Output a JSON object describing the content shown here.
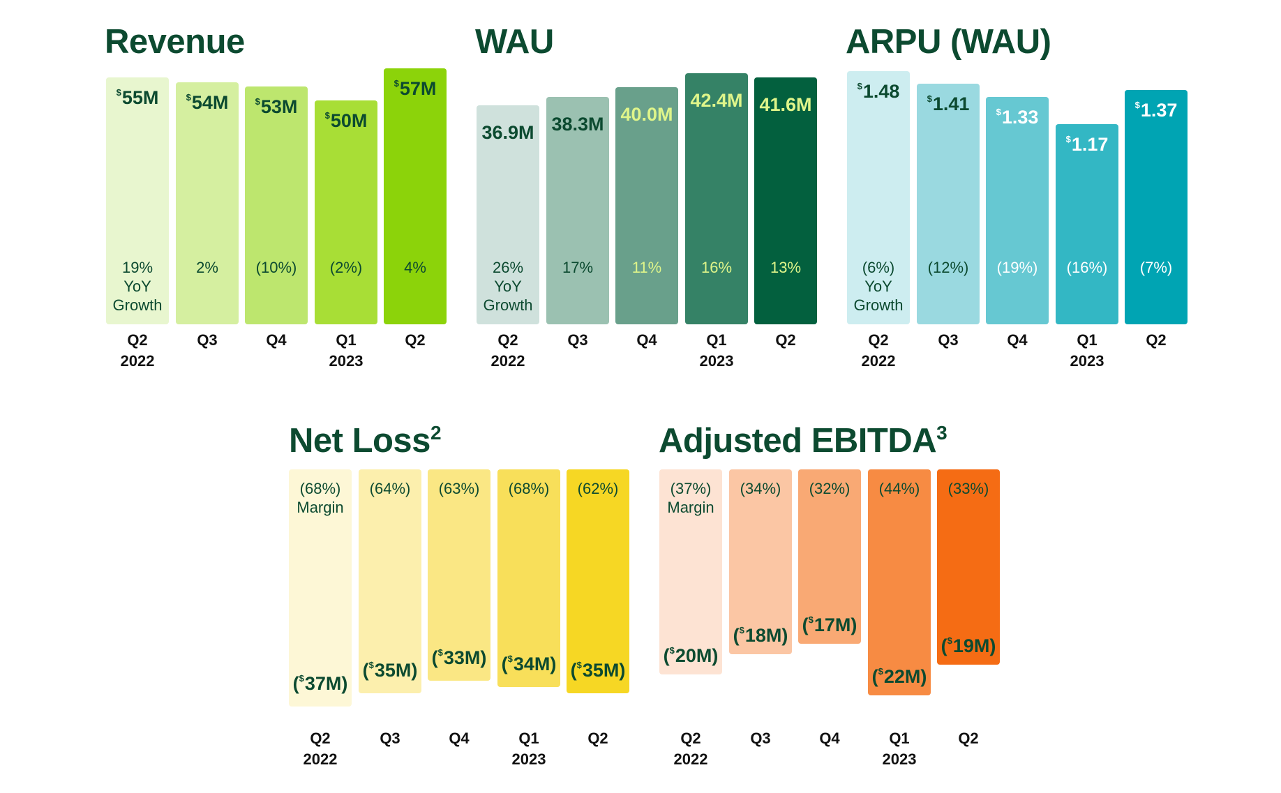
{
  "chart_data": [
    {
      "id": "revenue",
      "type": "bar",
      "title": "Revenue",
      "title_sup": "",
      "categories": [
        [
          "Q2",
          "2022"
        ],
        [
          "Q3",
          ""
        ],
        [
          "Q4",
          ""
        ],
        [
          "Q1",
          "2023"
        ],
        [
          "Q2",
          ""
        ]
      ],
      "values": [
        55,
        54,
        53,
        50,
        57
      ],
      "value_labels": [
        {
          "prefix": "$",
          "text": "55M"
        },
        {
          "prefix": "$",
          "text": "54M"
        },
        {
          "prefix": "$",
          "text": "53M"
        },
        {
          "prefix": "$",
          "text": "50M"
        },
        {
          "prefix": "$",
          "text": "57M"
        }
      ],
      "secondary_labels": [
        [
          "19%",
          "YoY",
          "Growth"
        ],
        [
          "2%"
        ],
        [
          "(10%)"
        ],
        [
          "(2%)"
        ],
        [
          "4%"
        ]
      ],
      "colors": [
        "#e8f6cf",
        "#d5efa0",
        "#bde66e",
        "#a8de36",
        "#8cd30a"
      ],
      "value_text_colors": [
        "#0c4a30",
        "#0c4a30",
        "#0c4a30",
        "#0c4a30",
        "#0c4a30"
      ],
      "secondary_text_colors": [
        "#0c4a30",
        "#0c4a30",
        "#0c4a30",
        "#0c4a30",
        "#0c4a30"
      ]
    },
    {
      "id": "wau",
      "type": "bar",
      "title": "WAU",
      "title_sup": "",
      "categories": [
        [
          "Q2",
          "2022"
        ],
        [
          "Q3",
          ""
        ],
        [
          "Q4",
          ""
        ],
        [
          "Q1",
          "2023"
        ],
        [
          "Q2",
          ""
        ]
      ],
      "values": [
        36.9,
        38.3,
        40.0,
        42.4,
        41.6
      ],
      "value_labels": [
        {
          "prefix": "",
          "text": "36.9M"
        },
        {
          "prefix": "",
          "text": "38.3M"
        },
        {
          "prefix": "",
          "text": "40.0M"
        },
        {
          "prefix": "",
          "text": "42.4M"
        },
        {
          "prefix": "",
          "text": "41.6M"
        }
      ],
      "secondary_labels": [
        [
          "26%",
          "YoY",
          "Growth"
        ],
        [
          "17%"
        ],
        [
          "11%"
        ],
        [
          "16%"
        ],
        [
          "13%"
        ]
      ],
      "colors": [
        "#cfe1dc",
        "#9bc1b1",
        "#69a08b",
        "#358266",
        "#03603e"
      ],
      "value_text_colors": [
        "#0c4a30",
        "#0c4a30",
        "#dff58a",
        "#dff58a",
        "#dff58a"
      ],
      "secondary_text_colors": [
        "#0c4a30",
        "#0c4a30",
        "#dff58a",
        "#dff58a",
        "#dff58a"
      ]
    },
    {
      "id": "arpu",
      "type": "bar",
      "title": "ARPU (WAU)",
      "title_sup": "",
      "categories": [
        [
          "Q2",
          "2022"
        ],
        [
          "Q3",
          ""
        ],
        [
          "Q4",
          ""
        ],
        [
          "Q1",
          "2023"
        ],
        [
          "Q2",
          ""
        ]
      ],
      "values": [
        1.48,
        1.41,
        1.33,
        1.17,
        1.37
      ],
      "value_labels": [
        {
          "prefix": "$",
          "text": "1.48"
        },
        {
          "prefix": "$",
          "text": "1.41"
        },
        {
          "prefix": "$",
          "text": "1.33"
        },
        {
          "prefix": "$",
          "text": "1.17"
        },
        {
          "prefix": "$",
          "text": "1.37"
        }
      ],
      "secondary_labels": [
        [
          "(6%)",
          "YoY",
          "Growth"
        ],
        [
          "(12%)"
        ],
        [
          "(19%)"
        ],
        [
          "(16%)"
        ],
        [
          "(7%)"
        ]
      ],
      "colors": [
        "#cdedf0",
        "#9ad9e0",
        "#66c8d2",
        "#33b7c4",
        "#00a4b3"
      ],
      "value_text_colors": [
        "#0c4a30",
        "#0c4a30",
        "#ffffff",
        "#ffffff",
        "#ffffff"
      ],
      "secondary_text_colors": [
        "#0c4a30",
        "#0c4a30",
        "#ffffff",
        "#ffffff",
        "#ffffff"
      ]
    },
    {
      "id": "net_loss",
      "type": "bar",
      "title": "Net Loss",
      "title_sup": "2",
      "categories": [
        [
          "Q2",
          "2022"
        ],
        [
          "Q3",
          ""
        ],
        [
          "Q4",
          ""
        ],
        [
          "Q1",
          "2023"
        ],
        [
          "Q2",
          ""
        ]
      ],
      "values": [
        -37,
        -35,
        -33,
        -34,
        -35
      ],
      "value_labels": [
        {
          "prefix": "$",
          "text": "37M",
          "paren": true
        },
        {
          "prefix": "$",
          "text": "35M",
          "paren": true
        },
        {
          "prefix": "$",
          "text": "33M",
          "paren": true
        },
        {
          "prefix": "$",
          "text": "34M",
          "paren": true
        },
        {
          "prefix": "$",
          "text": "35M",
          "paren": true
        }
      ],
      "secondary_labels": [
        [
          "(68%)",
          "Margin"
        ],
        [
          "(64%)"
        ],
        [
          "(63%)"
        ],
        [
          "(68%)"
        ],
        [
          "(62%)"
        ]
      ],
      "colors": [
        "#fdf7d6",
        "#fcefad",
        "#fae784",
        "#f8df5a",
        "#f6d724"
      ],
      "value_text_colors": [
        "#0c4a30",
        "#0c4a30",
        "#0c4a30",
        "#0c4a30",
        "#0c4a30"
      ],
      "secondary_text_colors": [
        "#0c4a30",
        "#0c4a30",
        "#0c4a30",
        "#0c4a30",
        "#0c4a30"
      ]
    },
    {
      "id": "adj_ebitda",
      "type": "bar",
      "title": "Adjusted EBITDA",
      "title_sup": "3",
      "categories": [
        [
          "Q2",
          "2022"
        ],
        [
          "Q3",
          ""
        ],
        [
          "Q4",
          ""
        ],
        [
          "Q1",
          "2023"
        ],
        [
          "Q2",
          ""
        ]
      ],
      "values": [
        -20,
        -18,
        -17,
        -22,
        -19
      ],
      "value_labels": [
        {
          "prefix": "$",
          "text": "20M",
          "paren": true
        },
        {
          "prefix": "$",
          "text": "18M",
          "paren": true
        },
        {
          "prefix": "$",
          "text": "17M",
          "paren": true
        },
        {
          "prefix": "$",
          "text": "22M",
          "paren": true
        },
        {
          "prefix": "$",
          "text": "19M",
          "paren": true
        }
      ],
      "secondary_labels": [
        [
          "(37%)",
          "Margin"
        ],
        [
          "(34%)"
        ],
        [
          "(32%)"
        ],
        [
          "(44%)"
        ],
        [
          "(33%)"
        ]
      ],
      "colors": [
        "#fde3d3",
        "#fbc6a4",
        "#f9a974",
        "#f78b43",
        "#f56c14"
      ],
      "value_text_colors": [
        "#0c4a30",
        "#0c4a30",
        "#0c4a30",
        "#0c4a30",
        "#0c4a30"
      ],
      "secondary_text_colors": [
        "#0c4a30",
        "#0c4a30",
        "#0c4a30",
        "#0c4a30",
        "#0c4a30"
      ]
    }
  ]
}
